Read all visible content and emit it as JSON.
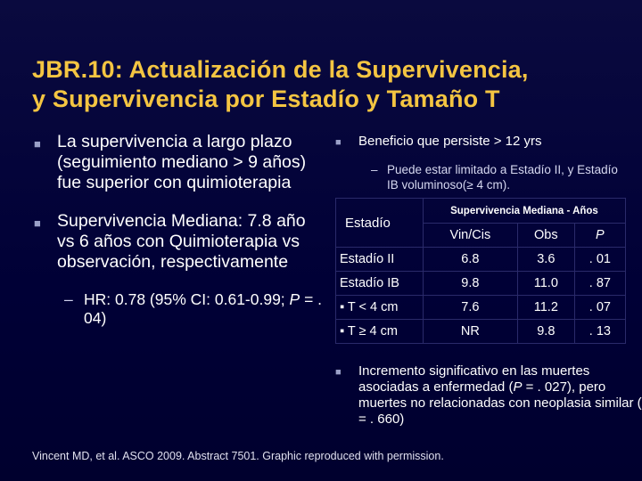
{
  "title": {
    "line1": "JBR.10: Actualización de la Supervivencia,",
    "line2": "y Supervivencia por Estadío y Tamaño T"
  },
  "left": {
    "bullet1": "La supervivencia a largo plazo (seguimiento mediano > 9 años) fue superior con quimioterapia",
    "bullet2": "Supervivencia Mediana: 7.8 año vs 6 años con Quimioterapia vs observación, respectivamente",
    "sub_prefix": "HR: 0.78 (95% CI: 0.61-0.99; ",
    "sub_p": "P",
    "sub_suffix": " = . 04)"
  },
  "right": {
    "bullet1": "Beneficio que persiste > 12 yrs",
    "sub1": "Puede estar limitado a Estadío II, y Estadío IB voluminoso(≥ 4 cm).",
    "bullet2_a": "Incremento significativo en las muertes asociadas a enfermedad (",
    "bullet2_p1": "P",
    "bullet2_b": " = . 027), pero muertes no relacionadas con neoplasia similar (",
    "bullet2_p2": "P",
    "bullet2_c": " = . 660)"
  },
  "table": {
    "header_stage": "Estadío",
    "header_group": "Supervivencia Mediana - Años",
    "columns": [
      "Vin/Cis",
      "Obs",
      "P"
    ],
    "rows": [
      {
        "label": "Estadío II",
        "vin": "6.8",
        "obs": "3.6",
        "p": ". 01"
      },
      {
        "label": "Estadío IB",
        "vin": "9.8",
        "obs": "11.0",
        "p": ". 87"
      },
      {
        "label": "▪ T < 4 cm",
        "vin": "7.6",
        "obs": "11.2",
        "p": ". 07"
      },
      {
        "label": "▪ T ≥ 4 cm",
        "vin": "NR",
        "obs": "9.8",
        "p": ". 13"
      }
    ]
  },
  "footer": "Vincent MD, et al. ASCO 2009. Abstract 7501. Graphic reproduced with permission.",
  "colors": {
    "background": "#000036",
    "title": "#f4c542",
    "text": "#ffffff"
  }
}
